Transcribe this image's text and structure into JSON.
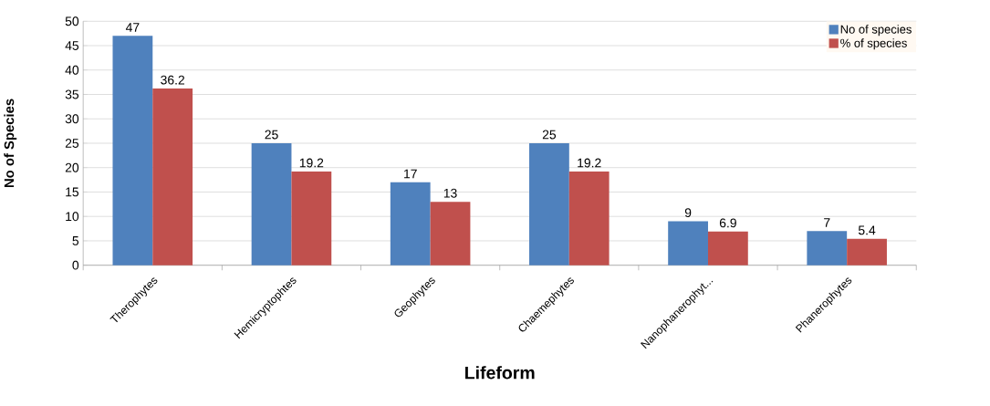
{
  "chart_data": {
    "type": "bar",
    "xlabel": "Lifeform",
    "ylabel": "No of Species",
    "categories": [
      "Therophytes",
      "Hemicryptophtes",
      "Geophytes",
      "Chaemephytes",
      "Nanophanerophyt...",
      "Phanerophytes"
    ],
    "series": [
      {
        "name": "No of species",
        "color": "#4f81bd",
        "values": [
          47,
          25,
          17,
          25,
          9,
          7
        ]
      },
      {
        "name": "% of species",
        "color": "#c0504d",
        "values": [
          36.2,
          19.2,
          13,
          19.2,
          6.9,
          5.4
        ]
      }
    ],
    "ylim": [
      0,
      50
    ],
    "yticks": [
      0,
      5,
      10,
      15,
      20,
      25,
      30,
      35,
      40,
      45,
      50
    ],
    "grid": "y",
    "legend": "top right",
    "data_labels": true
  }
}
